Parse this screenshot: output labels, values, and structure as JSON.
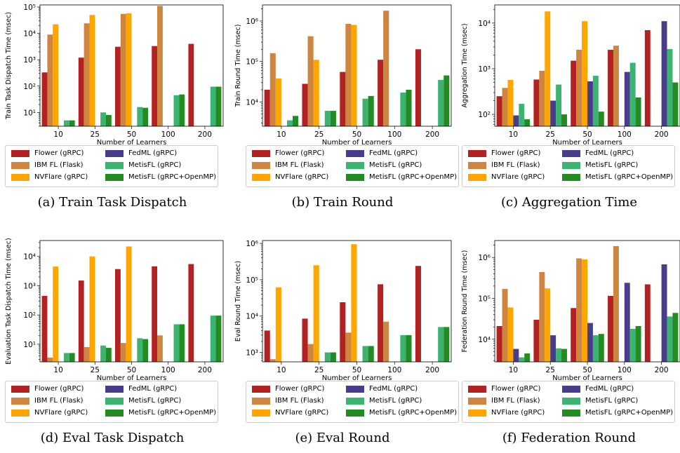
{
  "xlabel": "Number of Learners",
  "categories": [
    "10",
    "25",
    "50",
    "100",
    "200"
  ],
  "legend": [
    {
      "name": "Flower (gRPC)",
      "color": "#b22222"
    },
    {
      "name": "IBM FL (Flask)",
      "color": "#cd853f"
    },
    {
      "name": "NVFlare (gRPC)",
      "color": "#ffa500"
    },
    {
      "name": "FedML (gRPC)",
      "color": "#483d8b"
    },
    {
      "name": "MetisFL (gRPC)",
      "color": "#3cb371"
    },
    {
      "name": "MetisFL (gRPC+OpenMP)",
      "color": "#228b22"
    }
  ],
  "panels": [
    {
      "caption": "(a) Train Task Dispatch",
      "ylabel": "Train Task Dispatch Time (msec)"
    },
    {
      "caption": "(b) Train Round",
      "ylabel": "Train Round Time (msec)"
    },
    {
      "caption": "(c) Aggregation Time",
      "ylabel": "Aggregation Time (msec)"
    },
    {
      "caption": "(d) Eval Task Dispatch",
      "ylabel": "Evaluation Task Dispatch Time (msec)"
    },
    {
      "caption": "(e) Eval Round",
      "ylabel": "Eval Round Time (msec)"
    },
    {
      "caption": "(f) Federation Round",
      "ylabel": "Federation Round Time (msec)"
    }
  ],
  "chart_data": [
    {
      "type": "bar",
      "yscale": "log",
      "ylim": [
        3,
        120000
      ],
      "title": "",
      "xlabel": "Number of Learners",
      "ylabel": "Train Task Dispatch Time (msec)",
      "categories": [
        "10",
        "25",
        "50",
        "100",
        "200"
      ],
      "yticks": [
        {
          "v": 10,
          "label": "10^1"
        },
        {
          "v": 100,
          "label": "10^2"
        },
        {
          "v": 1000,
          "label": "10^3"
        },
        {
          "v": 10000,
          "label": "10^4"
        },
        {
          "v": 100000,
          "label": "10^5"
        }
      ],
      "series": [
        {
          "name": "Flower (gRPC)",
          "values": [
            330,
            1200,
            3100,
            3300,
            4000
          ]
        },
        {
          "name": "IBM FL (Flask)",
          "values": [
            9000,
            24000,
            55000,
            110000,
            null
          ]
        },
        {
          "name": "NVFlare (gRPC)",
          "values": [
            22000,
            50000,
            58000,
            null,
            null
          ]
        },
        {
          "name": "FedML (gRPC)",
          "values": [
            null,
            null,
            null,
            null,
            null
          ]
        },
        {
          "name": "MetisFL (gRPC)",
          "values": [
            5,
            10,
            16,
            45,
            95
          ]
        },
        {
          "name": "MetisFL (gRPC+OpenMP)",
          "values": [
            5,
            8,
            15,
            48,
            95
          ]
        }
      ]
    },
    {
      "type": "bar",
      "yscale": "log",
      "ylim": [
        2500,
        2500000
      ],
      "title": "",
      "xlabel": "Number of Learners",
      "ylabel": "Train Round Time (msec)",
      "categories": [
        "10",
        "25",
        "50",
        "100",
        "200"
      ],
      "yticks": [
        {
          "v": 10000,
          "label": "10^4"
        },
        {
          "v": 100000,
          "label": "10^5"
        },
        {
          "v": 1000000,
          "label": "10^6"
        }
      ],
      "series": [
        {
          "name": "Flower (gRPC)",
          "values": [
            20000,
            28000,
            55000,
            110000,
            200000
          ]
        },
        {
          "name": "IBM FL (Flask)",
          "values": [
            160000,
            420000,
            850000,
            1800000,
            null
          ]
        },
        {
          "name": "NVFlare (gRPC)",
          "values": [
            38000,
            110000,
            800000,
            null,
            null
          ]
        },
        {
          "name": "FedML (gRPC)",
          "values": [
            null,
            null,
            null,
            null,
            null
          ]
        },
        {
          "name": "MetisFL (gRPC)",
          "values": [
            3500,
            6000,
            12000,
            17000,
            35000
          ]
        },
        {
          "name": "MetisFL (gRPC+OpenMP)",
          "values": [
            4500,
            6000,
            14000,
            20000,
            45000
          ]
        }
      ]
    },
    {
      "type": "bar",
      "yscale": "log",
      "ylim": [
        55,
        25000
      ],
      "title": "",
      "xlabel": "Number of Learners",
      "ylabel": "Aggregation Time (msec)",
      "categories": [
        "10",
        "25",
        "50",
        "100",
        "200"
      ],
      "yticks": [
        {
          "v": 100,
          "label": "10^2"
        },
        {
          "v": 1000,
          "label": "10^3"
        },
        {
          "v": 10000,
          "label": "10^4"
        }
      ],
      "series": [
        {
          "name": "Flower (gRPC)",
          "values": [
            250,
            580,
            1500,
            2600,
            7000
          ]
        },
        {
          "name": "IBM FL (Flask)",
          "values": [
            380,
            900,
            2600,
            3200,
            null
          ]
        },
        {
          "name": "NVFlare (gRPC)",
          "values": [
            570,
            18000,
            11000,
            null,
            null
          ]
        },
        {
          "name": "FedML (gRPC)",
          "values": [
            95,
            200,
            530,
            850,
            11000
          ]
        },
        {
          "name": "MetisFL (gRPC)",
          "values": [
            170,
            450,
            700,
            1350,
            2700
          ]
        },
        {
          "name": "MetisFL (gRPC+OpenMP)",
          "values": [
            78,
            100,
            115,
            235,
            500
          ]
        }
      ]
    },
    {
      "type": "bar",
      "yscale": "log",
      "ylim": [
        2.5,
        35000
      ],
      "title": "",
      "xlabel": "Number of Learners",
      "ylabel": "Evaluation Task Dispatch Time (msec)",
      "categories": [
        "10",
        "25",
        "50",
        "100",
        "200"
      ],
      "yticks": [
        {
          "v": 10,
          "label": "10^1"
        },
        {
          "v": 100,
          "label": "10^2"
        },
        {
          "v": 1000,
          "label": "10^3"
        },
        {
          "v": 10000,
          "label": "10^4"
        }
      ],
      "series": [
        {
          "name": "Flower (gRPC)",
          "values": [
            450,
            1500,
            3700,
            4600,
            5500
          ]
        },
        {
          "name": "IBM FL (Flask)",
          "values": [
            3.5,
            8,
            11,
            20,
            null
          ]
        },
        {
          "name": "NVFlare (gRPC)",
          "values": [
            4500,
            10000,
            22000,
            null,
            null
          ]
        },
        {
          "name": "FedML (gRPC)",
          "values": [
            null,
            null,
            null,
            null,
            null
          ]
        },
        {
          "name": "MetisFL (gRPC)",
          "values": [
            5,
            9,
            16,
            48,
            95
          ]
        },
        {
          "name": "MetisFL (gRPC+OpenMP)",
          "values": [
            5,
            7.5,
            15,
            48,
            95
          ]
        }
      ]
    },
    {
      "type": "bar",
      "yscale": "log",
      "ylim": [
        550,
        1200000
      ],
      "title": "",
      "xlabel": "Number of Learners",
      "ylabel": "Eval Round Time (msec)",
      "categories": [
        "10",
        "25",
        "50",
        "100",
        "200"
      ],
      "yticks": [
        {
          "v": 1000,
          "label": "10^3"
        },
        {
          "v": 10000,
          "label": "10^4"
        },
        {
          "v": 100000,
          "label": "10^5"
        },
        {
          "v": 1000000,
          "label": "10^6"
        }
      ],
      "series": [
        {
          "name": "Flower (gRPC)",
          "values": [
            4000,
            8500,
            24000,
            75000,
            240000
          ]
        },
        {
          "name": "IBM FL (Flask)",
          "values": [
            650,
            1700,
            3500,
            7000,
            null
          ]
        },
        {
          "name": "NVFlare (gRPC)",
          "values": [
            62000,
            250000,
            950000,
            null,
            null
          ]
        },
        {
          "name": "FedML (gRPC)",
          "values": [
            null,
            null,
            null,
            null,
            null
          ]
        },
        {
          "name": "MetisFL (gRPC)",
          "values": [
            null,
            1000,
            1500,
            3000,
            5000
          ]
        },
        {
          "name": "MetisFL (gRPC+OpenMP)",
          "values": [
            null,
            1000,
            1500,
            3000,
            5000
          ]
        }
      ]
    },
    {
      "type": "bar",
      "yscale": "log",
      "ylim": [
        2800,
        2600000
      ],
      "title": "",
      "xlabel": "Number of Learners",
      "ylabel": "Federation Round Time (msec)",
      "categories": [
        "10",
        "25",
        "50",
        "100",
        "200"
      ],
      "yticks": [
        {
          "v": 10000,
          "label": "10^4"
        },
        {
          "v": 100000,
          "label": "10^5"
        },
        {
          "v": 1000000,
          "label": "10^6"
        }
      ],
      "series": [
        {
          "name": "Flower (gRPC)",
          "values": [
            21000,
            30000,
            58000,
            115000,
            220000
          ]
        },
        {
          "name": "IBM FL (Flask)",
          "values": [
            170000,
            440000,
            950000,
            1900000,
            null
          ]
        },
        {
          "name": "NVFlare (gRPC)",
          "values": [
            60000,
            175000,
            900000,
            null,
            null
          ]
        },
        {
          "name": "FedML (gRPC)",
          "values": [
            5800,
            12500,
            25000,
            240000,
            680000
          ]
        },
        {
          "name": "MetisFL (gRPC)",
          "values": [
            3600,
            6000,
            12500,
            18000,
            36000
          ]
        },
        {
          "name": "MetisFL (gRPC+OpenMP)",
          "values": [
            4500,
            5800,
            13500,
            21000,
            44000
          ]
        }
      ]
    }
  ]
}
